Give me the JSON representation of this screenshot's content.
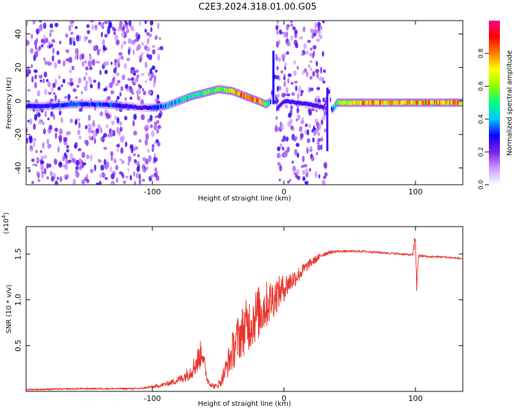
{
  "title": "C2E3.2024.318.01.00.G05",
  "chart_data": [
    {
      "type": "heatmap",
      "xlabel": "Height of straight line (km)",
      "ylabel": "Frequency (Hz)",
      "xlim": [
        -196,
        136
      ],
      "ylim": [
        -50,
        48
      ],
      "x_ticks": [
        -100,
        0,
        100
      ],
      "y_ticks": [
        -40,
        -20,
        0,
        20,
        40
      ],
      "colorbar": {
        "label": "Normalized spectral amplitude",
        "range": [
          0,
          1
        ],
        "ticks": [
          "0.0",
          "0.2",
          "0.4",
          "0.6",
          "0.8"
        ],
        "colors": [
          "#ffffff",
          "#cc99ff",
          "#7a1fe6",
          "#1000ff",
          "#00c8ff",
          "#00ff80",
          "#90ff00",
          "#ffff00",
          "#ff8000",
          "#ff0000",
          "#ff0080"
        ]
      },
      "ridge": {
        "x": [
          -196,
          -180,
          -160,
          -140,
          -120,
          -110,
          -100,
          -90,
          -80,
          -70,
          -60,
          -50,
          -40,
          -30,
          -20,
          -14,
          -10,
          -8,
          -6,
          0,
          20,
          30,
          34,
          36,
          40,
          60,
          80,
          100,
          120,
          136
        ],
        "y": [
          -3,
          -3,
          -2,
          -2,
          -3,
          -4,
          -4,
          -3,
          0,
          3,
          5,
          7,
          6,
          3,
          0,
          -2,
          0,
          25,
          -5,
          0,
          -2,
          -4,
          7,
          -6,
          -1,
          -1,
          -1,
          -1,
          -1,
          -1
        ],
        "amplitude": [
          0.3,
          0.3,
          0.35,
          0.35,
          0.3,
          0.15,
          0.35,
          0.4,
          0.45,
          0.5,
          0.55,
          0.6,
          0.7,
          0.9,
          0.85,
          0.6,
          0.3,
          0.2,
          0.2,
          0.1,
          0.1,
          0.15,
          0.2,
          0.3,
          0.6,
          0.8,
          0.8,
          0.8,
          0.8,
          0.8
        ]
      },
      "noisy_regions": [
        [
          -196,
          -93
        ],
        [
          -6,
          32
        ]
      ]
    },
    {
      "type": "line",
      "xlabel": "Height of straight line (km)",
      "ylabel": "SNR (10 * v/v)",
      "y_multiplier": "(x10",
      "y_multiplier_exp": "4",
      "y_multiplier_close": ")",
      "xlim": [
        -196,
        136
      ],
      "ylim": [
        0,
        1.8
      ],
      "x_ticks": [
        -100,
        0,
        100
      ],
      "y_ticks": [
        0.5,
        1.0,
        1.5
      ],
      "color": "#e8332b",
      "series": [
        {
          "x": [
            -196,
            -150,
            -110,
            -95,
            -85,
            -78,
            -72,
            -68,
            -65,
            -62,
            -60,
            -58,
            -55,
            -52,
            -48,
            -44,
            -40,
            -36,
            -32,
            -28,
            -24,
            -20,
            -16,
            -12,
            -8,
            -4,
            0,
            5,
            10,
            15,
            20,
            25,
            30,
            35,
            40,
            50,
            60,
            70,
            80,
            90,
            98,
            100,
            101,
            102,
            103,
            105,
            110,
            120,
            136
          ],
          "y": [
            0.02,
            0.03,
            0.03,
            0.06,
            0.1,
            0.14,
            0.2,
            0.28,
            0.35,
            0.45,
            0.25,
            0.12,
            0.07,
            0.05,
            0.1,
            0.25,
            0.4,
            0.55,
            0.65,
            0.72,
            0.78,
            0.85,
            0.9,
            0.97,
            1.02,
            1.08,
            1.13,
            1.2,
            1.26,
            1.33,
            1.4,
            1.45,
            1.5,
            1.52,
            1.53,
            1.53,
            1.53,
            1.52,
            1.51,
            1.5,
            1.49,
            1.7,
            1.1,
            1.45,
            1.48,
            1.48,
            1.47,
            1.47,
            1.45
          ],
          "noise": [
            0.01,
            0.01,
            0.01,
            0.02,
            0.03,
            0.05,
            0.08,
            0.12,
            0.15,
            0.15,
            0.08,
            0.04,
            0.03,
            0.03,
            0.05,
            0.12,
            0.2,
            0.25,
            0.28,
            0.3,
            0.3,
            0.3,
            0.28,
            0.25,
            0.22,
            0.18,
            0.15,
            0.12,
            0.09,
            0.07,
            0.05,
            0.04,
            0.03,
            0.02,
            0.015,
            0.012,
            0.012,
            0.012,
            0.012,
            0.012,
            0.012,
            0.1,
            0.1,
            0.03,
            0.015,
            0.015,
            0.012,
            0.012,
            0.012
          ]
        }
      ]
    }
  ]
}
